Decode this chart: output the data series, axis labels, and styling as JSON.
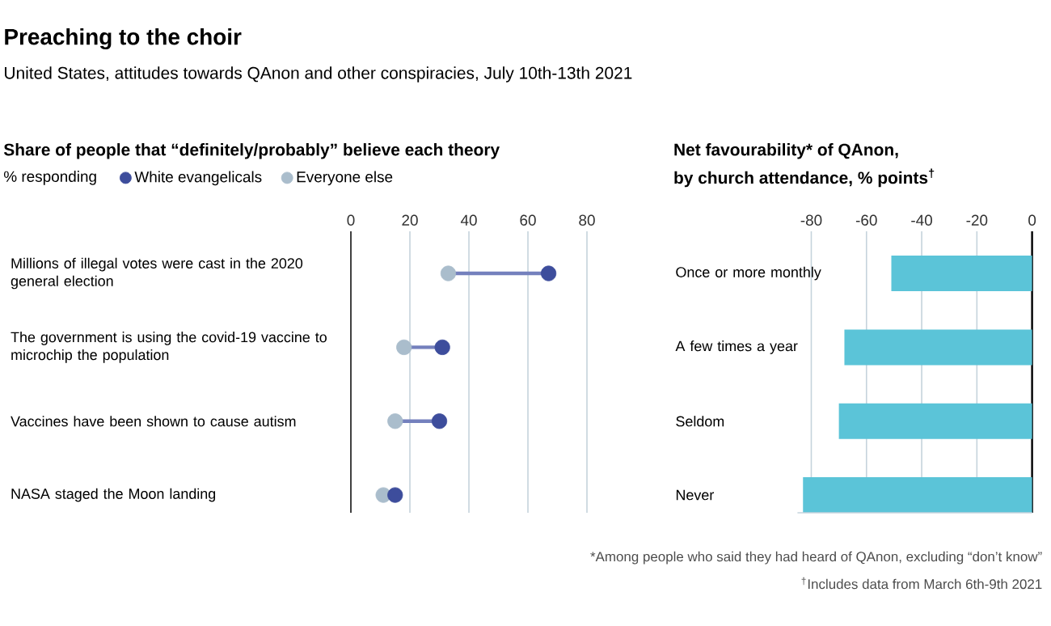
{
  "chart_data": [
    {
      "type": "other",
      "title": "Preaching to the choir",
      "subtitle": "United States, attitudes towards QAnon and other conspiracies, July 10th-13th 2021"
    },
    {
      "type": "scatter",
      "orientation": "horizontal",
      "title": "Share of people that “definitely/probably” believe each theory",
      "subtitle": "% responding",
      "categories": [
        "Millions of illegal votes were cast in the 2020 general election",
        "The government is using the covid-19 vaccine to microchip the population",
        "Vaccines have been shown to cause autism",
        "NASA staged the Moon landing"
      ],
      "series": [
        {
          "name": "White evangelicals",
          "color": "#3d4d9c",
          "values": [
            67,
            31,
            30,
            15
          ]
        },
        {
          "name": "Everyone else",
          "color": "#aabdcc",
          "values": [
            33,
            18,
            15,
            11
          ]
        }
      ],
      "xlim": [
        0,
        80
      ],
      "xticks": [
        0,
        20,
        40,
        60,
        80
      ],
      "grid": "x",
      "legend": "top left",
      "marker": "circle"
    },
    {
      "type": "bar",
      "orientation": "horizontal",
      "title": "Net favourability* of QAnon,",
      "subtitle": "by church attendance, % points$^{†}$",
      "categories": [
        "Once or more monthly",
        "A few times a year",
        "Seldom",
        "Never"
      ],
      "values": [
        -51,
        -68,
        -70,
        -83
      ],
      "color": "#5bc4d8",
      "xlim": [
        -85,
        0
      ],
      "xticks": [
        -80,
        -60,
        -40,
        -20,
        0
      ],
      "grid": "x",
      "annotations": [
        "*Among people who said they had heard of QAnon, excluding “don’t know”",
        "$^{†}$Includes data from March 6th-9th 2021"
      ]
    }
  ]
}
